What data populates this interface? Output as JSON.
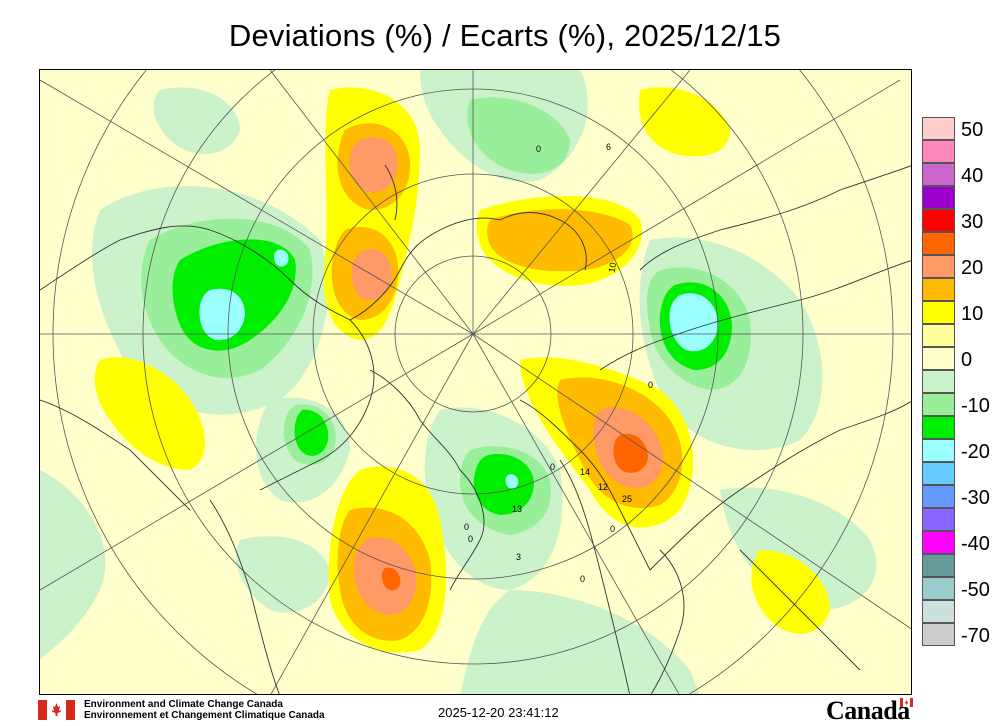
{
  "title": "Deviations (%) / Ecarts (%), 2025/12/15",
  "legend": {
    "items": [
      {
        "label": "50",
        "color": "#ffcccc"
      },
      {
        "label": "",
        "color": "#ff88bb"
      },
      {
        "label": "40",
        "color": "#cc66cc"
      },
      {
        "label": "",
        "color": "#9900cc"
      },
      {
        "label": "30",
        "color": "#ff0000"
      },
      {
        "label": "",
        "color": "#ff6600"
      },
      {
        "label": "20",
        "color": "#ff9966"
      },
      {
        "label": "",
        "color": "#ffbb00"
      },
      {
        "label": "10",
        "color": "#ffff00"
      },
      {
        "label": "",
        "color": "#ffff99"
      },
      {
        "label": "0",
        "color": "#ffffcc"
      },
      {
        "label": "",
        "color": "#ccf2cc"
      },
      {
        "label": "-10",
        "color": "#99ee99"
      },
      {
        "label": "",
        "color": "#00ee00"
      },
      {
        "label": "-20",
        "color": "#99ffff"
      },
      {
        "label": "",
        "color": "#66ccff"
      },
      {
        "label": "-30",
        "color": "#6699ff"
      },
      {
        "label": "",
        "color": "#8866ff"
      },
      {
        "label": "-40",
        "color": "#ff00ff"
      },
      {
        "label": "",
        "color": "#669999"
      },
      {
        "label": "-50",
        "color": "#99cccc"
      },
      {
        "label": "",
        "color": "#cce0dd"
      },
      {
        "label": "-70",
        "color": "#cccccc"
      }
    ]
  },
  "contour_labels": [
    "0",
    "6",
    "10",
    "0",
    "14",
    "12",
    "25",
    "0",
    "0",
    "13",
    "3",
    "0",
    "0",
    "0"
  ],
  "footer": {
    "org_en": "Environment and Climate Change Canada",
    "org_fr": "Environnement et Changement Climatique Canada",
    "timestamp": "2025-12-20 23:41:12",
    "wordmark": "Canada"
  },
  "colors": {
    "neutral": "#ffffcc",
    "light_green": "#ccf2cc",
    "green": "#99ee99",
    "bright_green": "#00ee00",
    "cyan": "#99ffff",
    "yellow": "#ffff00",
    "orange": "#ffbb00",
    "salmon": "#ff9966",
    "dark_orange": "#ff6600",
    "red": "#ff0000",
    "canada_red": "#d52b1e"
  }
}
